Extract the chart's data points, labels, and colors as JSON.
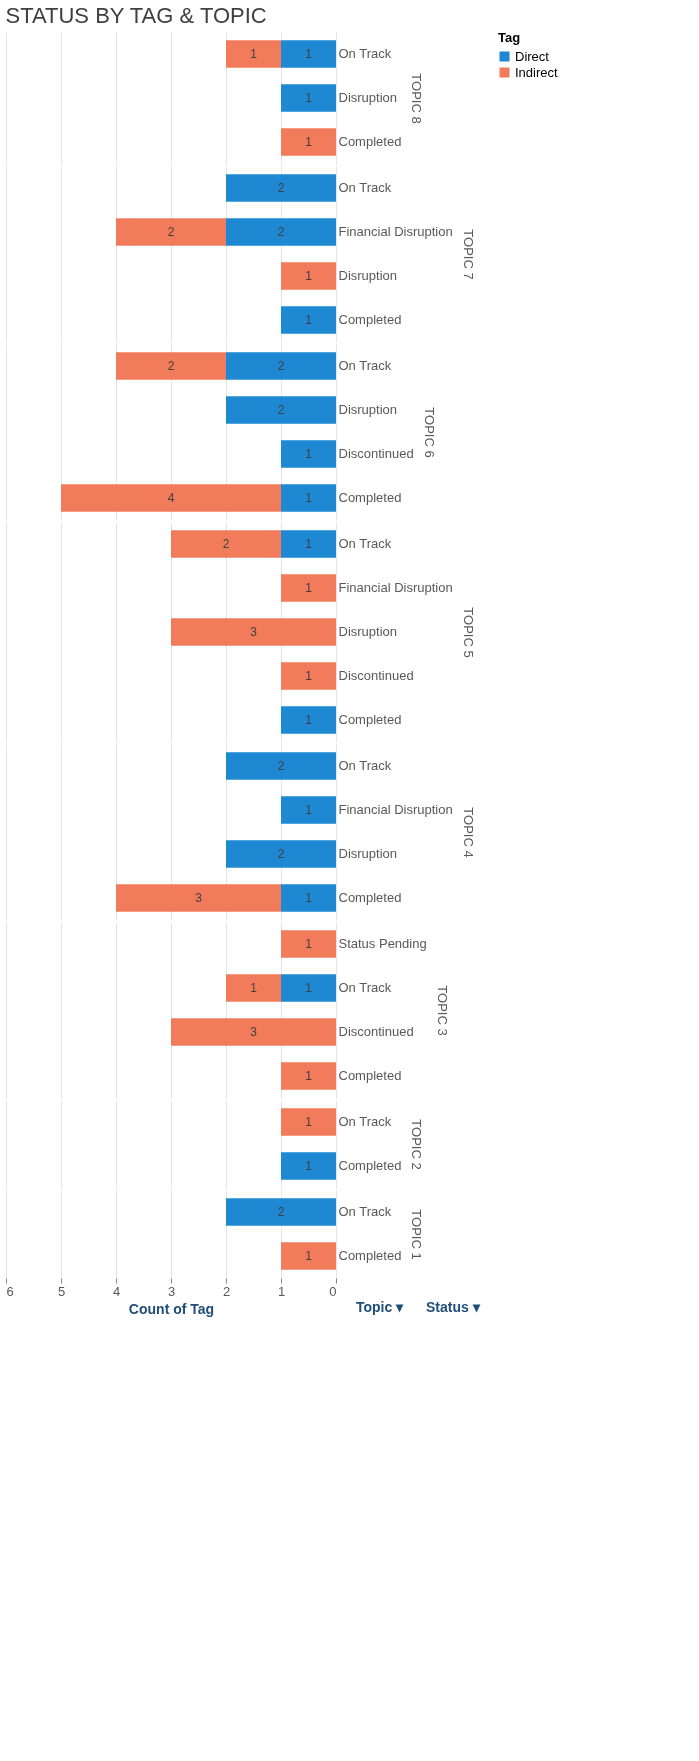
{
  "chart_data": [
    {
      "type": "bar",
      "orientation": "horizontal",
      "stacked": true,
      "title": "STATUS BY TAG & TOPIC",
      "ylabel": "TOPIC 8",
      "legend_title": "Tag",
      "legend": "right",
      "grid": "x",
      "data_labels": true,
      "tick_labels": "y",
      "xlim": [
        6,
        0
      ],
      "xticks": [
        0,
        1,
        2,
        3,
        4,
        5,
        6
      ],
      "categories": [
        "On Track",
        "Disruption",
        "Completed"
      ],
      "series": [
        {
          "name": "Direct",
          "color": "#1f88d2",
          "values": [
            1,
            1,
            null
          ]
        },
        {
          "name": "Indirect",
          "color": "#f27b5b",
          "values": [
            1,
            null,
            1
          ]
        }
      ]
    },
    {
      "type": "bar",
      "orientation": "horizontal",
      "stacked": true,
      "ylabel": "TOPIC 7",
      "grid": "x",
      "data_labels": true,
      "tick_labels": "y",
      "xlim": [
        6,
        0
      ],
      "xticks": [
        0,
        1,
        2,
        3,
        4,
        5,
        6
      ],
      "categories": [
        "On Track",
        "Financial Disruption",
        "Disruption",
        "Completed"
      ],
      "series": [
        {
          "name": "Direct",
          "color": "#1f88d2",
          "values": [
            2,
            2,
            null,
            1
          ]
        },
        {
          "name": "Indirect",
          "color": "#f27b5b",
          "values": [
            null,
            2,
            1,
            null
          ]
        }
      ]
    },
    {
      "type": "bar",
      "orientation": "horizontal",
      "stacked": true,
      "ylabel": "TOPIC 6",
      "grid": "x",
      "data_labels": true,
      "tick_labels": "y",
      "xlim": [
        6,
        0
      ],
      "xticks": [
        0,
        1,
        2,
        3,
        4,
        5,
        6
      ],
      "categories": [
        "On Track",
        "Disruption",
        "Discontinued",
        "Completed"
      ],
      "series": [
        {
          "name": "Direct",
          "color": "#1f88d2",
          "values": [
            2,
            2,
            1,
            1
          ]
        },
        {
          "name": "Indirect",
          "color": "#f27b5b",
          "values": [
            2,
            null,
            null,
            4
          ]
        }
      ]
    },
    {
      "type": "bar",
      "orientation": "horizontal",
      "stacked": true,
      "ylabel": "TOPIC 5",
      "grid": "x",
      "data_labels": true,
      "tick_labels": "y",
      "xlim": [
        6,
        0
      ],
      "xticks": [
        0,
        1,
        2,
        3,
        4,
        5,
        6
      ],
      "categories": [
        "On Track",
        "Financial Disruption",
        "Disruption",
        "Discontinued",
        "Completed"
      ],
      "series": [
        {
          "name": "Direct",
          "color": "#1f88d2",
          "values": [
            1,
            null,
            null,
            null,
            1
          ]
        },
        {
          "name": "Indirect",
          "color": "#f27b5b",
          "values": [
            2,
            1,
            3,
            1,
            null
          ]
        }
      ]
    },
    {
      "type": "bar",
      "orientation": "horizontal",
      "stacked": true,
      "ylabel": "TOPIC 4",
      "grid": "x",
      "data_labels": true,
      "tick_labels": "y",
      "xlim": [
        6,
        0
      ],
      "xticks": [
        0,
        1,
        2,
        3,
        4,
        5,
        6
      ],
      "categories": [
        "On Track",
        "Financial Disruption",
        "Disruption",
        "Completed"
      ],
      "series": [
        {
          "name": "Direct",
          "color": "#1f88d2",
          "values": [
            2,
            1,
            2,
            1
          ]
        },
        {
          "name": "Indirect",
          "color": "#f27b5b",
          "values": [
            null,
            null,
            null,
            3
          ]
        }
      ]
    },
    {
      "type": "bar",
      "orientation": "horizontal",
      "stacked": true,
      "ylabel": "TOPIC 3",
      "grid": "x",
      "data_labels": true,
      "tick_labels": "y",
      "xlim": [
        6,
        0
      ],
      "xticks": [
        0,
        1,
        2,
        3,
        4,
        5,
        6
      ],
      "categories": [
        "Status Pending",
        "On Track",
        "Discontinued",
        "Completed"
      ],
      "series": [
        {
          "name": "Direct",
          "color": "#1f88d2",
          "values": [
            null,
            1,
            null,
            null
          ]
        },
        {
          "name": "Indirect",
          "color": "#f27b5b",
          "values": [
            1,
            1,
            3,
            1
          ]
        }
      ]
    },
    {
      "type": "bar",
      "orientation": "horizontal",
      "stacked": true,
      "ylabel": "TOPIC 2",
      "grid": "x",
      "data_labels": true,
      "tick_labels": "y",
      "xlim": [
        6,
        0
      ],
      "xticks": [
        0,
        1,
        2,
        3,
        4,
        5,
        6
      ],
      "categories": [
        "On Track",
        "Completed"
      ],
      "series": [
        {
          "name": "Direct",
          "color": "#1f88d2",
          "values": [
            null,
            1
          ]
        },
        {
          "name": "Indirect",
          "color": "#f27b5b",
          "values": [
            1,
            null
          ]
        }
      ]
    },
    {
      "type": "bar",
      "orientation": "horizontal",
      "stacked": true,
      "ylabel": "TOPIC 1",
      "xlabel": "Count of Tag",
      "grid": "x",
      "data_labels": true,
      "xlim": [
        6,
        0
      ],
      "xticks": [
        0,
        1,
        2,
        3,
        4,
        5,
        6
      ],
      "categories": [
        "On Track",
        "Completed"
      ],
      "annotations": [
        "Topic ▾",
        "Status ▾"
      ],
      "series": [
        {
          "name": "Direct",
          "color": "#1f88d2",
          "values": [
            2,
            null
          ]
        },
        {
          "name": "Indirect",
          "color": "#f27b5b",
          "values": [
            null,
            1
          ]
        }
      ]
    }
  ]
}
